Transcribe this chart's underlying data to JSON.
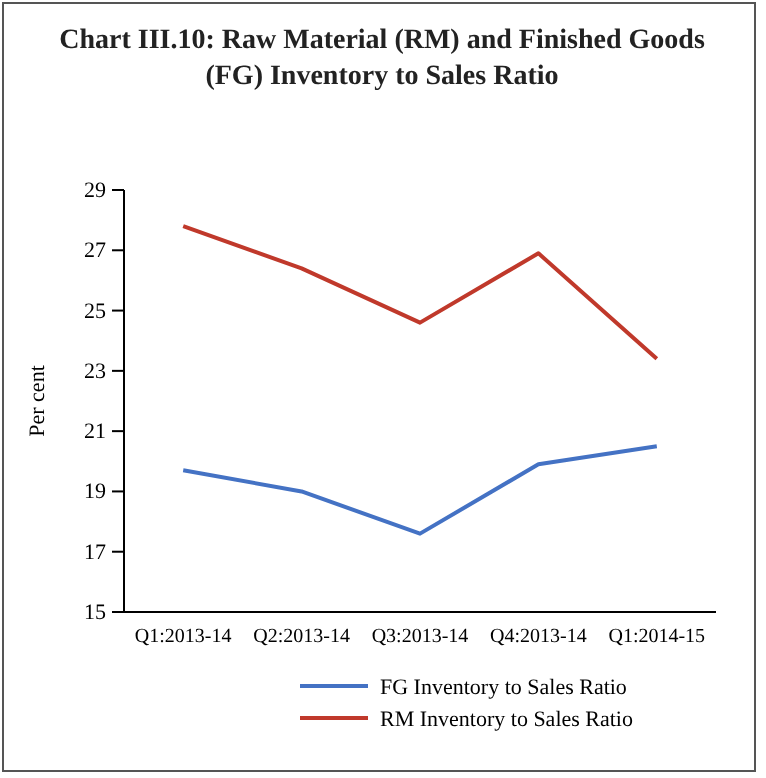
{
  "chart_data": {
    "type": "line",
    "title": "Chart III.10: Raw Material (RM) and Finished Goods (FG) Inventory to Sales Ratio",
    "ylabel": "Per cent",
    "categories": [
      "Q1:2013-14",
      "Q2:2013-14",
      "Q3:2013-14",
      "Q4:2013-14",
      "Q1:2014-15"
    ],
    "series": [
      {
        "name": "FG Inventory to Sales Ratio",
        "color": "#4472c4",
        "values": [
          19.7,
          19.0,
          17.6,
          19.9,
          20.5
        ]
      },
      {
        "name": "RM Inventory to Sales Ratio",
        "color": "#c0392b",
        "values": [
          27.8,
          26.4,
          24.6,
          26.9,
          23.4
        ]
      }
    ],
    "ylim": [
      15,
      29
    ],
    "yticks": [
      15,
      17,
      19,
      21,
      23,
      25,
      27,
      29
    ],
    "grid": false,
    "legend": "bottom",
    "marker": "none",
    "line_style": "solid"
  }
}
